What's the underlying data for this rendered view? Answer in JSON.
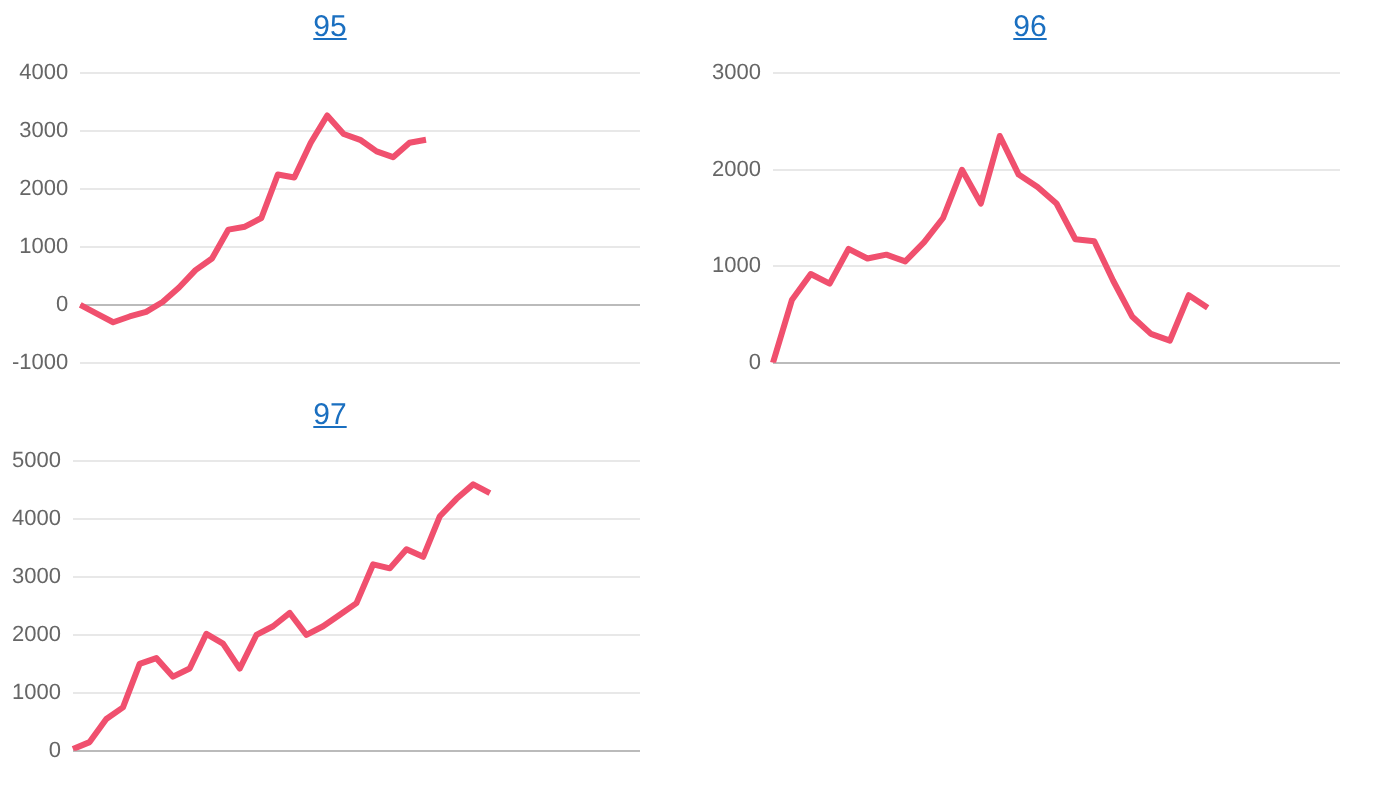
{
  "chart_data": [
    {
      "type": "line",
      "title": "95",
      "categories": [
        null,
        null,
        null,
        null,
        null,
        null,
        null,
        null,
        null,
        null,
        null,
        null,
        null,
        null,
        null,
        null,
        null,
        null,
        null,
        null,
        null,
        null,
        null,
        null,
        null,
        null,
        null,
        null,
        null,
        null,
        null,
        null,
        null,
        null,
        null
      ],
      "series": [
        {
          "color": "#f0506e",
          "values": [
            0,
            -150,
            -300,
            -200,
            -120,
            50,
            300,
            600,
            800,
            1300,
            1350,
            1500,
            2250,
            2200,
            2800,
            3270,
            2950,
            2850,
            2650,
            2550,
            2800,
            2850,
            null,
            null,
            null,
            null,
            null,
            null,
            null,
            null,
            null,
            null,
            null,
            null,
            null
          ]
        }
      ],
      "ylim": [
        -1000,
        4000
      ],
      "yticks": [
        -1000,
        0,
        1000,
        2000,
        3000,
        4000
      ],
      "grid": "y",
      "tick_labels": "y",
      "legend": false,
      "marker": "none",
      "line_style": "solid"
    },
    {
      "type": "line",
      "title": "96",
      "categories": [
        null,
        null,
        null,
        null,
        null,
        null,
        null,
        null,
        null,
        null,
        null,
        null,
        null,
        null,
        null,
        null,
        null,
        null,
        null,
        null,
        null,
        null,
        null,
        null,
        null,
        null,
        null,
        null,
        null,
        null,
        null
      ],
      "series": [
        {
          "color": "#f0506e",
          "values": [
            0,
            650,
            920,
            820,
            1180,
            1080,
            1120,
            1050,
            1250,
            1500,
            2000,
            1650,
            2350,
            1950,
            1820,
            1650,
            1280,
            1260,
            850,
            480,
            300,
            230,
            700,
            570,
            null,
            null,
            null,
            null,
            null,
            null,
            null
          ]
        }
      ],
      "ylim": [
        0,
        3000
      ],
      "yticks": [
        0,
        1000,
        2000,
        3000
      ],
      "grid": "y",
      "tick_labels": "y",
      "legend": false,
      "marker": "none",
      "line_style": "solid"
    },
    {
      "type": "line",
      "title": "97",
      "categories": [
        null,
        null,
        null,
        null,
        null,
        null,
        null,
        null,
        null,
        null,
        null,
        null,
        null,
        null,
        null,
        null,
        null,
        null,
        null,
        null,
        null,
        null,
        null,
        null,
        null,
        null,
        null,
        null,
        null,
        null,
        null,
        null,
        null,
        null,
        null
      ],
      "series": [
        {
          "color": "#f0506e",
          "values": [
            30,
            150,
            550,
            750,
            1500,
            1600,
            1280,
            1420,
            2020,
            1850,
            1420,
            2000,
            2150,
            2380,
            2000,
            2150,
            2350,
            2550,
            3220,
            3150,
            3480,
            3350,
            4050,
            4350,
            4600,
            4450,
            null,
            null,
            null,
            null,
            null,
            null,
            null,
            null,
            null
          ]
        }
      ],
      "ylim": [
        0,
        5000
      ],
      "yticks": [
        0,
        1000,
        2000,
        3000,
        4000,
        5000
      ],
      "grid": "y",
      "tick_labels": "y",
      "legend": false,
      "marker": "none",
      "line_style": "solid"
    }
  ]
}
